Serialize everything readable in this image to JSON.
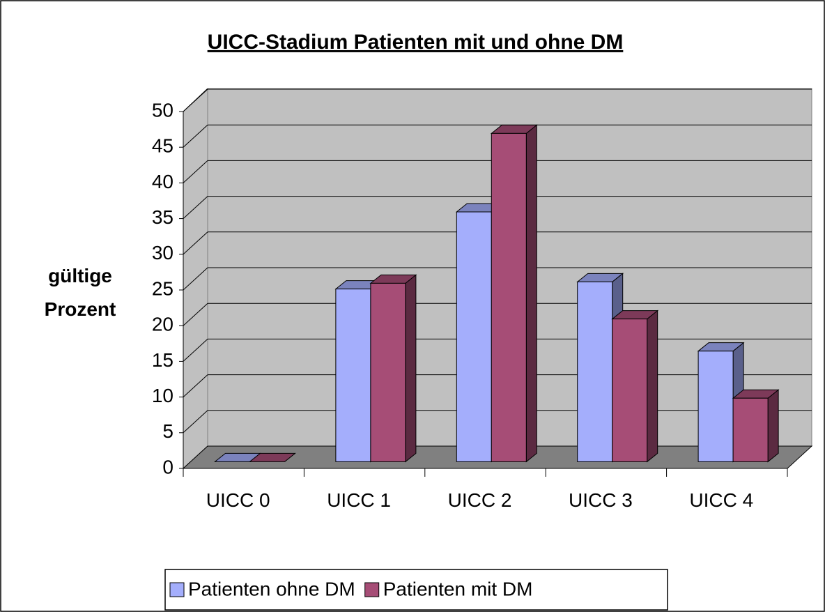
{
  "chart_data": {
    "type": "bar3d",
    "title": "UICC-Stadium Patienten mit und ohne DM",
    "y_label": "gültige Prozent",
    "categories": [
      "UICC 0",
      "UICC 1",
      "UICC 2",
      "UICC 3",
      "UICC 4"
    ],
    "series": [
      {
        "name": "Patienten ohne DM",
        "color": "#a4aefc",
        "values": [
          0,
          24.2,
          35,
          25.2,
          15.5
        ]
      },
      {
        "name": "Patienten mit DM",
        "color": "#a64d76",
        "values": [
          0,
          25,
          46,
          20,
          8.9
        ]
      }
    ],
    "ylim": [
      0,
      50
    ],
    "yticks": [
      0,
      5,
      10,
      15,
      20,
      25,
      30,
      35,
      40,
      45,
      50
    ],
    "grid": true,
    "legend": "bottom"
  }
}
